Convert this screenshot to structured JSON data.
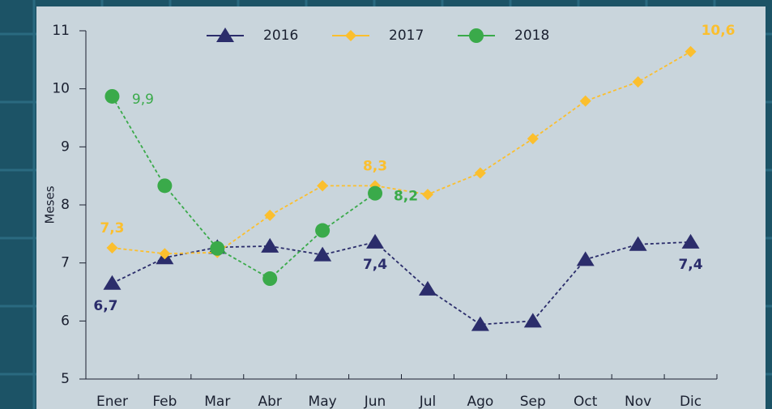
{
  "chart_data": {
    "type": "line",
    "y_label": "Meses",
    "categories": [
      "Ener",
      "Feb",
      "Mar",
      "Abr",
      "May",
      "Jun",
      "Jul",
      "Ago",
      "Sep",
      "Oct",
      "Nov",
      "Dic"
    ],
    "ylim": [
      5,
      11
    ],
    "yticks": [
      5,
      6,
      7,
      8,
      9,
      10,
      11
    ],
    "grid": false,
    "legend": "top",
    "series": [
      {
        "name": "2016",
        "color": "#2b2d6b",
        "marker": "triangle",
        "values": [
          6.65,
          7.09,
          7.27,
          7.29,
          7.14,
          7.36,
          6.55,
          5.94,
          6.0,
          7.06,
          7.32,
          7.36
        ],
        "value_labels": [
          "6,7",
          null,
          null,
          null,
          null,
          "7,4",
          null,
          null,
          null,
          null,
          null,
          "7,4"
        ]
      },
      {
        "name": "2017",
        "color": "#fbbf2e",
        "marker": "diamond",
        "values": [
          7.26,
          7.16,
          7.18,
          7.82,
          8.33,
          8.33,
          8.18,
          8.55,
          9.14,
          9.79,
          10.12,
          10.64
        ],
        "value_labels": [
          "7,3",
          null,
          null,
          null,
          null,
          "8,3",
          null,
          null,
          null,
          null,
          null,
          "10,6"
        ]
      },
      {
        "name": "2018",
        "color": "#3aaa4a",
        "marker": "circle",
        "values": [
          9.87,
          8.33,
          7.25,
          6.73,
          7.56,
          8.2,
          null,
          null,
          null,
          null,
          null,
          null
        ],
        "value_labels": [
          "9,9",
          null,
          null,
          null,
          null,
          "8,2",
          null,
          null,
          null,
          null,
          null,
          null
        ]
      }
    ]
  }
}
